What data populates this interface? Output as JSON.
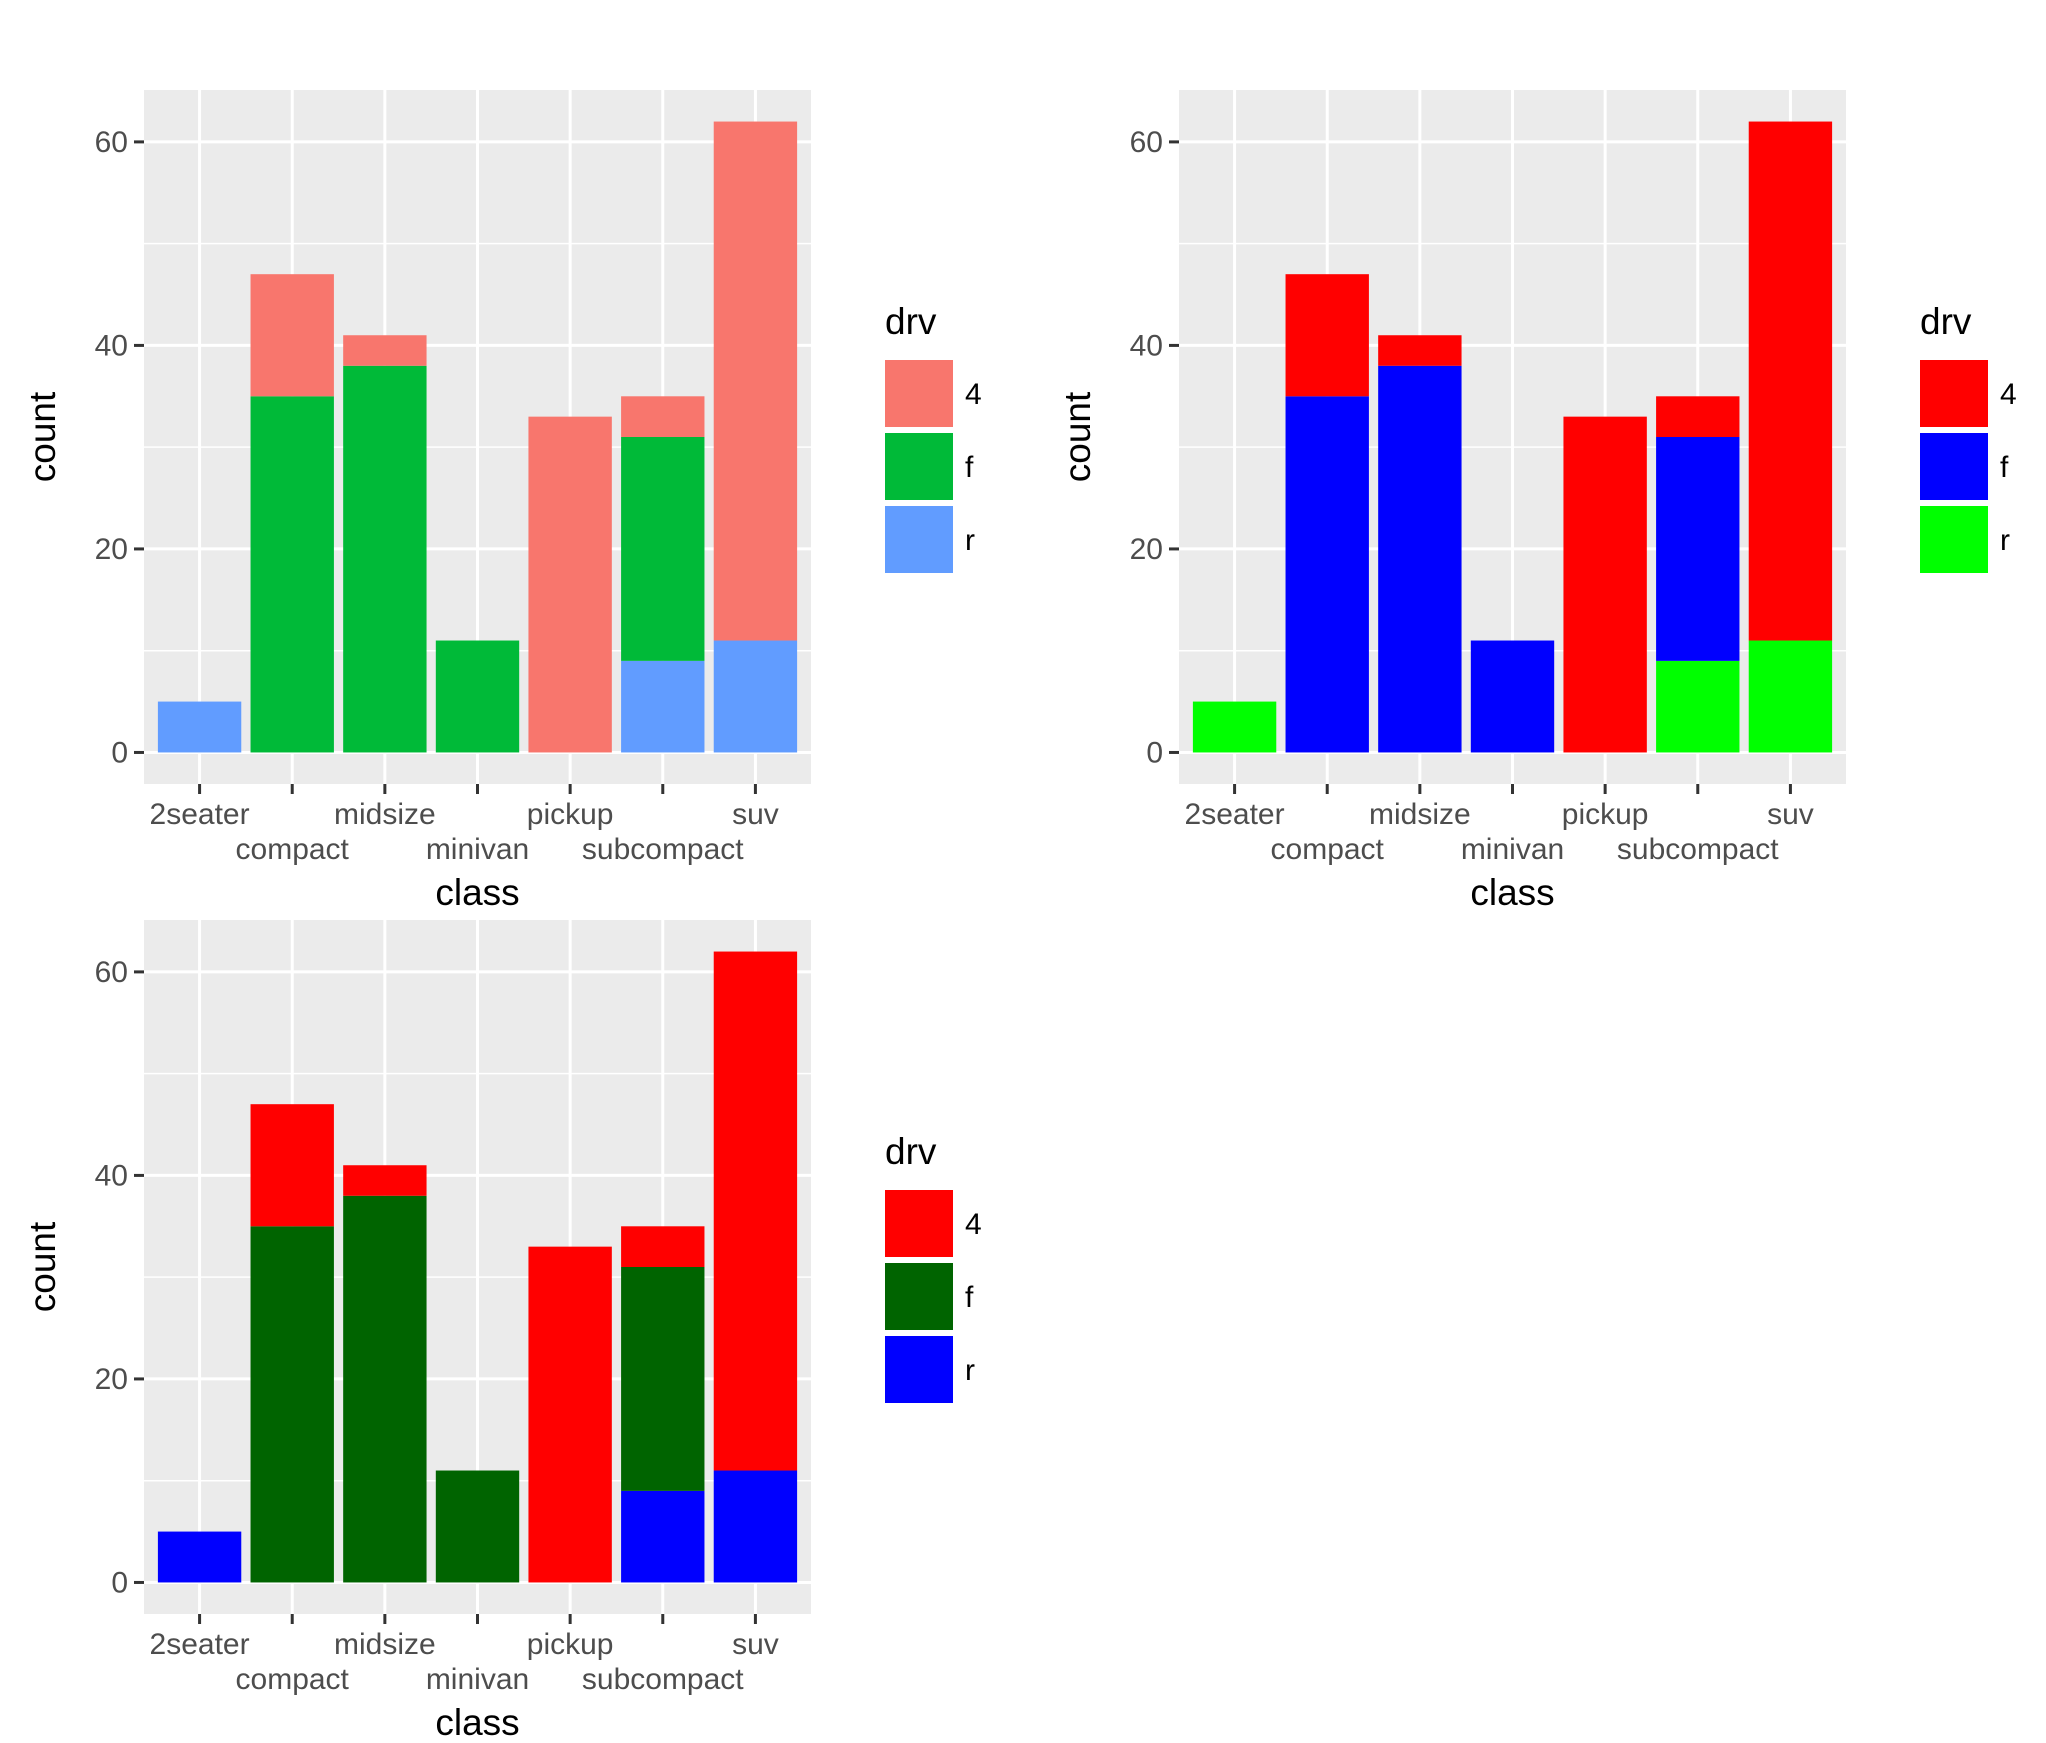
{
  "chart_data": [
    {
      "type": "bar",
      "stacked": true,
      "xlabel": "class",
      "ylabel": "count",
      "ylim": [
        -3.1,
        65.1
      ],
      "yticks": [
        0,
        20,
        40,
        60
      ],
      "grid": true,
      "legend_position": "right",
      "legend_title": "drv",
      "categories": [
        "2seater",
        "compact",
        "midsize",
        "minivan",
        "pickup",
        "subcompact",
        "suv"
      ],
      "series": [
        {
          "name": "4",
          "color": "#F8766D",
          "values": [
            0,
            12,
            3,
            0,
            33,
            4,
            51
          ]
        },
        {
          "name": "f",
          "color": "#00BA38",
          "values": [
            0,
            35,
            38,
            11,
            0,
            22,
            0
          ]
        },
        {
          "name": "r",
          "color": "#619CFF",
          "values": [
            5,
            0,
            0,
            0,
            0,
            9,
            11
          ]
        }
      ]
    },
    {
      "type": "bar",
      "stacked": true,
      "xlabel": "class",
      "ylabel": "count",
      "ylim": [
        -3.1,
        65.1
      ],
      "yticks": [
        0,
        20,
        40,
        60
      ],
      "grid": true,
      "legend_position": "right",
      "legend_title": "drv",
      "categories": [
        "2seater",
        "compact",
        "midsize",
        "minivan",
        "pickup",
        "subcompact",
        "suv"
      ],
      "series": [
        {
          "name": "4",
          "color": "#FF0000",
          "values": [
            0,
            12,
            3,
            0,
            33,
            4,
            51
          ]
        },
        {
          "name": "f",
          "color": "#0000FF",
          "values": [
            0,
            35,
            38,
            11,
            0,
            22,
            0
          ]
        },
        {
          "name": "r",
          "color": "#00FF00",
          "values": [
            5,
            0,
            0,
            0,
            0,
            9,
            11
          ]
        }
      ]
    },
    {
      "type": "bar",
      "stacked": true,
      "xlabel": "class",
      "ylabel": "count",
      "ylim": [
        -3.1,
        65.1
      ],
      "yticks": [
        0,
        20,
        40,
        60
      ],
      "grid": true,
      "legend_position": "right",
      "legend_title": "drv",
      "categories": [
        "2seater",
        "compact",
        "midsize",
        "minivan",
        "pickup",
        "subcompact",
        "suv"
      ],
      "series": [
        {
          "name": "4",
          "color": "#FF0000",
          "values": [
            0,
            12,
            3,
            0,
            33,
            4,
            51
          ]
        },
        {
          "name": "f",
          "color": "#006400",
          "values": [
            0,
            35,
            38,
            11,
            0,
            22,
            0
          ]
        },
        {
          "name": "r",
          "color": "#0000FF",
          "values": [
            5,
            0,
            0,
            0,
            0,
            9,
            11
          ]
        }
      ]
    }
  ]
}
